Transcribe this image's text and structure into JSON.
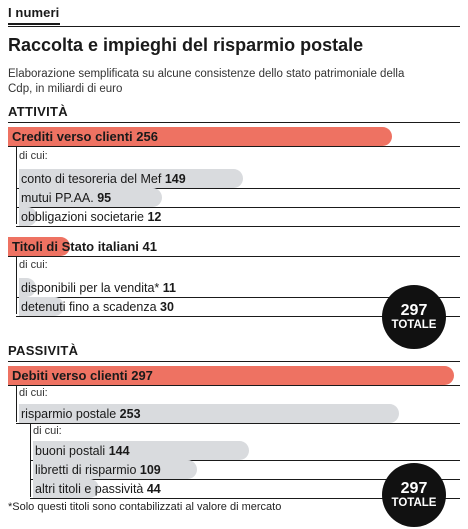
{
  "section_tag": "I numeri",
  "title": "Raccolta e impieghi del risparmio postale",
  "subtitle": "Elaborazione semplificata su alcune consistenze dello stato patrimoniale della Cdp, in miliardi di euro",
  "di_cui": "di cui:",
  "footnote": "*Solo questi titoli sono contabilizzati al valore di mercato",
  "colors": {
    "main_bar": "#ee7262",
    "sub_bar": "#d9dbde",
    "circle": "#111111"
  },
  "chart_data": {
    "type": "bar",
    "unit": "miliardi di euro",
    "sections": [
      {
        "heading": "ATTIVITÀ",
        "total": 297,
        "total_label": "TOTALE",
        "groups": [
          {
            "label": "Crediti verso clienti",
            "value": 256,
            "children": [
              {
                "label": "conto di tesoreria del Mef",
                "value": 149
              },
              {
                "label": "mutui PP.AA.",
                "value": 95
              },
              {
                "label": "obbligazioni societarie",
                "value": 12
              }
            ]
          },
          {
            "label": "Titoli di Stato italiani",
            "value": 41,
            "children": [
              {
                "label": "disponibili per la vendita*",
                "value": 11
              },
              {
                "label": "detenuti fino a scadenza",
                "value": 30
              }
            ]
          }
        ]
      },
      {
        "heading": "PASSIVITÀ",
        "total": 297,
        "total_label": "TOTALE",
        "groups": [
          {
            "label": "Debiti verso clienti",
            "value": 297,
            "children": [
              {
                "label": "risparmio postale",
                "value": 253,
                "children": [
                  {
                    "label": "buoni postali",
                    "value": 144
                  },
                  {
                    "label": "libretti di risparmio",
                    "value": 109
                  },
                  {
                    "label": "altri titoli e passività",
                    "value": 44
                  }
                ]
              }
            ]
          }
        ]
      }
    ]
  }
}
